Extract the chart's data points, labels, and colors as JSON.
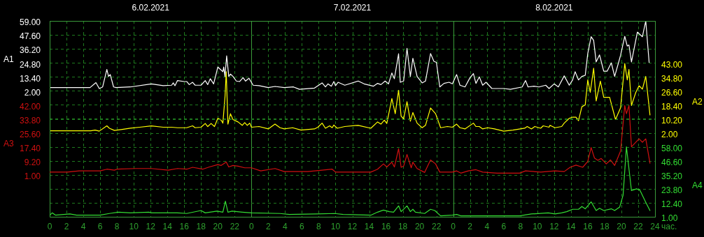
{
  "chart_data": [
    {
      "type": "line",
      "xlabel": "час.",
      "ylabel": "A1",
      "y2label": "A2",
      "xlim": [
        "2021-02-06T00:00",
        "2021-02-09T00:00"
      ],
      "xticks": [
        {
          "value": "2021-02-06T00:00",
          "label": "0"
        },
        {
          "value": "2021-02-06T02:00",
          "label": "2"
        },
        {
          "value": "2021-02-06T04:00",
          "label": "4"
        },
        {
          "value": "2021-02-06T06:00",
          "label": "6"
        },
        {
          "value": "2021-02-06T08:00",
          "label": "8"
        },
        {
          "value": "2021-02-06T10:00",
          "label": "10"
        },
        {
          "value": "2021-02-06T12:00",
          "label": "12"
        },
        {
          "value": "2021-02-06T14:00",
          "label": "14"
        },
        {
          "value": "2021-02-06T16:00",
          "label": "16"
        },
        {
          "value": "2021-02-06T18:00",
          "label": "18"
        },
        {
          "value": "2021-02-06T20:00",
          "label": "20"
        },
        {
          "value": "2021-02-06T22:00",
          "label": "22"
        },
        {
          "value": "2021-02-07T00:00",
          "label": "0"
        },
        {
          "value": "2021-02-07T02:00",
          "label": "2"
        },
        {
          "value": "2021-02-07T04:00",
          "label": "4"
        },
        {
          "value": "2021-02-07T06:00",
          "label": "6"
        },
        {
          "value": "2021-02-07T08:00",
          "label": "8"
        },
        {
          "value": "2021-02-07T10:00",
          "label": "10"
        },
        {
          "value": "2021-02-07T12:00",
          "label": "12"
        },
        {
          "value": "2021-02-07T14:00",
          "label": "14"
        },
        {
          "value": "2021-02-07T16:00",
          "label": "16"
        },
        {
          "value": "2021-02-07T18:00",
          "label": "18"
        },
        {
          "value": "2021-02-07T20:00",
          "label": "20"
        },
        {
          "value": "2021-02-07T22:00",
          "label": "22"
        },
        {
          "value": "2021-02-08T00:00",
          "label": "0"
        },
        {
          "value": "2021-02-08T02:00",
          "label": "2"
        },
        {
          "value": "2021-02-08T04:00",
          "label": "4"
        },
        {
          "value": "2021-02-08T06:00",
          "label": "6"
        },
        {
          "value": "2021-02-08T08:00",
          "label": "8"
        },
        {
          "value": "2021-02-08T10:00",
          "label": "10"
        },
        {
          "value": "2021-02-08T12:00",
          "label": "12"
        },
        {
          "value": "2021-02-08T14:00",
          "label": "14"
        },
        {
          "value": "2021-02-08T16:00",
          "label": "16"
        },
        {
          "value": "2021-02-08T18:00",
          "label": "18"
        },
        {
          "value": "2021-02-08T20:00",
          "label": "20"
        },
        {
          "value": "2021-02-08T22:00",
          "label": "22"
        },
        {
          "value": "2021-02-09T00:00",
          "label": "24"
        }
      ],
      "x2lim": [
        "2021-02-06T00:00",
        "2021-02-09T00:00"
      ],
      "x2ticks": [
        {
          "value": "2021-02-06T12:00",
          "label": "6.02.2021"
        },
        {
          "value": "2021-02-07T12:00",
          "label": "7.02.2021"
        },
        {
          "value": "2021-02-08T12:00",
          "label": "8.02.2021"
        }
      ],
      "ylim": [
        -100.6,
        59
      ],
      "yticks": [
        {
          "value": 59,
          "label": "59.00"
        },
        {
          "value": 47.6,
          "label": "47.60"
        },
        {
          "value": 36.2,
          "label": "36.20"
        },
        {
          "value": 24.8,
          "label": "24.80"
        },
        {
          "value": 13.4,
          "label": "13.40"
        },
        {
          "value": 2,
          "label": "2.00"
        }
      ],
      "y2lim": [
        -47.2,
        67.6
      ],
      "y2ticks": [
        {
          "value": 43,
          "label": "43.00"
        },
        {
          "value": 34.8,
          "label": "34.80"
        },
        {
          "value": 26.6,
          "label": "26.60"
        },
        {
          "value": 18.4,
          "label": "18.40"
        },
        {
          "value": 10.2,
          "label": "10.20"
        },
        {
          "value": 2,
          "label": "2.00"
        }
      ],
      "grid": true,
      "legend": false,
      "marker": "none",
      "line_style": "solid",
      "series": [
        {
          "axis": "y",
          "color": "#ffffff",
          "x": [
            "2021-02-06T00:00",
            "2021-02-06T04:48",
            "2021-02-06T05:30",
            "2021-02-06T05:54",
            "2021-02-06T06:18",
            "2021-02-06T06:48",
            "2021-02-06T07:00",
            "2021-02-06T07:12",
            "2021-02-06T07:36",
            "2021-02-06T07:54",
            "2021-02-06T09:36",
            "2021-02-06T12:06",
            "2021-02-06T13:30",
            "2021-02-06T14:30",
            "2021-02-06T14:42",
            "2021-02-06T14:54",
            "2021-02-06T15:12",
            "2021-02-06T16:00",
            "2021-02-06T16:18",
            "2021-02-06T16:36",
            "2021-02-06T17:00",
            "2021-02-06T17:18",
            "2021-02-06T18:00",
            "2021-02-06T18:30",
            "2021-02-06T18:48",
            "2021-02-06T19:06",
            "2021-02-06T19:30",
            "2021-02-06T20:00",
            "2021-02-06T20:18",
            "2021-02-06T20:36",
            "2021-02-06T20:42",
            "2021-02-06T20:51",
            "2021-02-06T21:03",
            "2021-02-06T21:18",
            "2021-02-06T21:30",
            "2021-02-06T21:48",
            "2021-02-06T22:12",
            "2021-02-06T22:36",
            "2021-02-06T23:00",
            "2021-02-06T23:18",
            "2021-02-06T23:42",
            "2021-02-07T00:12",
            "2021-02-07T00:54",
            "2021-02-07T02:00",
            "2021-02-07T02:48",
            "2021-02-07T03:54",
            "2021-02-07T05:00",
            "2021-02-07T05:42",
            "2021-02-07T07:30",
            "2021-02-07T08:24",
            "2021-02-07T08:48",
            "2021-02-07T09:06",
            "2021-02-07T09:30",
            "2021-02-07T09:48",
            "2021-02-07T10:00",
            "2021-02-07T10:18",
            "2021-02-07T11:06",
            "2021-02-07T12:42",
            "2021-02-07T13:24",
            "2021-02-07T14:30",
            "2021-02-07T15:00",
            "2021-02-07T15:24",
            "2021-02-07T15:54",
            "2021-02-07T16:18",
            "2021-02-07T16:42",
            "2021-02-07T17:00",
            "2021-02-07T17:30",
            "2021-02-07T17:42",
            "2021-02-07T18:06",
            "2021-02-07T18:30",
            "2021-02-07T18:54",
            "2021-02-07T19:12",
            "2021-02-07T19:42",
            "2021-02-07T20:18",
            "2021-02-07T20:42",
            "2021-02-07T21:18",
            "2021-02-07T21:42",
            "2021-02-07T22:00",
            "2021-02-07T22:24",
            "2021-02-07T22:54",
            "2021-02-07T23:30",
            "2021-02-07T23:54",
            "2021-02-08T00:24",
            "2021-02-08T00:48",
            "2021-02-08T01:24",
            "2021-02-08T02:00",
            "2021-02-08T02:24",
            "2021-02-08T02:42",
            "2021-02-08T03:06",
            "2021-02-08T03:30",
            "2021-02-08T03:54",
            "2021-02-08T04:36",
            "2021-02-08T06:00",
            "2021-02-08T06:48",
            "2021-02-08T08:12",
            "2021-02-08T08:36",
            "2021-02-08T08:54",
            "2021-02-08T09:36",
            "2021-02-08T10:12",
            "2021-02-08T11:00",
            "2021-02-08T11:24",
            "2021-02-08T12:00",
            "2021-02-08T12:30",
            "2021-02-08T13:12",
            "2021-02-08T13:48",
            "2021-02-08T14:12",
            "2021-02-08T14:30",
            "2021-02-08T14:54",
            "2021-02-08T15:18",
            "2021-02-08T15:42",
            "2021-02-08T16:00",
            "2021-02-08T16:24",
            "2021-02-08T16:42",
            "2021-02-08T17:00",
            "2021-02-08T17:24",
            "2021-02-08T17:54",
            "2021-02-08T18:18",
            "2021-02-08T18:48",
            "2021-02-08T19:12",
            "2021-02-08T19:54",
            "2021-02-08T20:24",
            "2021-02-08T20:42",
            "2021-02-08T20:54",
            "2021-02-08T21:12",
            "2021-02-08T21:54",
            "2021-02-08T22:30",
            "2021-02-08T22:54",
            "2021-02-08T23:18"
          ],
          "values": [
            4.7,
            4.7,
            8.7,
            3.9,
            5.2,
            19.5,
            13.8,
            15.3,
            5.2,
            4.7,
            5.2,
            7.7,
            6.2,
            6.6,
            8.5,
            6.2,
            10.4,
            9.6,
            9.6,
            7.1,
            9.0,
            6.6,
            6.6,
            10.4,
            7.1,
            11.9,
            7.7,
            21.4,
            19.5,
            17.6,
            21.4,
            13.8,
            30.5,
            13.8,
            15.7,
            13.8,
            10.0,
            9.6,
            12.8,
            10.0,
            12.3,
            6.6,
            6.2,
            4.7,
            5.6,
            4.7,
            5.2,
            3.3,
            4.3,
            8.5,
            5.2,
            7.7,
            5.8,
            9.6,
            6.2,
            9.0,
            6.6,
            10.0,
            7.7,
            5.8,
            8.1,
            7.1,
            10.0,
            7.7,
            16.6,
            11.9,
            32.2,
            9.0,
            10.0,
            36.6,
            13.8,
            28.6,
            13.8,
            8.5,
            10.0,
            32.4,
            26.1,
            25.2,
            5.2,
            8.1,
            9.0,
            7.7,
            15.3,
            6.6,
            5.2,
            12.8,
            16.1,
            8.1,
            13.4,
            6.6,
            9.0,
            3.9,
            3.9,
            3.3,
            5.2,
            10.4,
            5.2,
            5.8,
            5.2,
            6.6,
            3.9,
            7.7,
            5.2,
            14.2,
            6.6,
            10.9,
            17.6,
            10.9,
            13.8,
            14.7,
            32.4,
            46.1,
            43.2,
            25.6,
            31.3,
            18.0,
            18.0,
            24.8,
            13.8,
            30.9,
            46.5,
            38.5,
            39.4,
            25.6,
            49.9,
            46.1,
            59.0,
            25.2
          ]
        },
        {
          "axis": "y2",
          "color": "#ffff00",
          "x": [
            "2021-02-06T00:00",
            "2021-02-06T04:54",
            "2021-02-06T05:24",
            "2021-02-06T05:54",
            "2021-02-06T06:48",
            "2021-02-06T07:06",
            "2021-02-06T07:42",
            "2021-02-06T08:30",
            "2021-02-06T09:36",
            "2021-02-06T10:42",
            "2021-02-06T12:06",
            "2021-02-06T13:30",
            "2021-02-06T14:30",
            "2021-02-06T15:12",
            "2021-02-06T16:18",
            "2021-02-06T17:00",
            "2021-02-06T17:18",
            "2021-02-06T18:00",
            "2021-02-06T18:30",
            "2021-02-06T18:48",
            "2021-02-06T19:12",
            "2021-02-06T19:36",
            "2021-02-06T20:00",
            "2021-02-06T20:24",
            "2021-02-06T20:36",
            "2021-02-06T20:51",
            "2021-02-06T21:00",
            "2021-02-06T21:12",
            "2021-02-06T21:30",
            "2021-02-06T21:48",
            "2021-02-06T22:24",
            "2021-02-06T22:54",
            "2021-02-06T23:12",
            "2021-02-06T23:30",
            "2021-02-06T23:48",
            "2021-02-07T00:00",
            "2021-02-07T00:54",
            "2021-02-07T02:00",
            "2021-02-07T02:48",
            "2021-02-07T03:24",
            "2021-02-07T03:54",
            "2021-02-07T04:54",
            "2021-02-07T05:54",
            "2021-02-07T07:30",
            "2021-02-07T07:54",
            "2021-02-07T08:24",
            "2021-02-07T08:48",
            "2021-02-07T09:18",
            "2021-02-07T09:36",
            "2021-02-07T09:48",
            "2021-02-07T10:12",
            "2021-02-07T11:06",
            "2021-02-07T12:42",
            "2021-02-07T14:12",
            "2021-02-07T15:00",
            "2021-02-07T15:24",
            "2021-02-07T15:48",
            "2021-02-07T16:06",
            "2021-02-07T16:42",
            "2021-02-07T17:06",
            "2021-02-07T17:30",
            "2021-02-07T17:48",
            "2021-02-07T18:06",
            "2021-02-07T18:30",
            "2021-02-07T18:54",
            "2021-02-07T19:12",
            "2021-02-07T19:42",
            "2021-02-07T20:18",
            "2021-02-07T20:42",
            "2021-02-07T21:18",
            "2021-02-07T21:54",
            "2021-02-07T22:30",
            "2021-02-07T23:18",
            "2021-02-07T23:54",
            "2021-02-08T00:24",
            "2021-02-08T00:48",
            "2021-02-08T01:24",
            "2021-02-08T02:24",
            "2021-02-08T02:42",
            "2021-02-08T03:06",
            "2021-02-08T03:30",
            "2021-02-08T04:06",
            "2021-02-08T04:54",
            "2021-02-08T06:00",
            "2021-02-08T07:06",
            "2021-02-08T08:30",
            "2021-02-08T08:48",
            "2021-02-08T09:18",
            "2021-02-08T09:42",
            "2021-02-08T10:24",
            "2021-02-08T10:42",
            "2021-02-08T11:24",
            "2021-02-08T11:30",
            "2021-02-08T12:06",
            "2021-02-08T12:54",
            "2021-02-08T13:12",
            "2021-02-08T13:48",
            "2021-02-08T14:12",
            "2021-02-08T14:36",
            "2021-02-08T14:54",
            "2021-02-08T15:18",
            "2021-02-08T15:42",
            "2021-02-08T16:00",
            "2021-02-08T16:18",
            "2021-02-08T16:42",
            "2021-02-08T17:00",
            "2021-02-08T17:30",
            "2021-02-08T17:54",
            "2021-02-08T18:36",
            "2021-02-08T19:18",
            "2021-02-08T19:54",
            "2021-02-08T20:24",
            "2021-02-08T20:42",
            "2021-02-08T20:54",
            "2021-02-08T21:12",
            "2021-02-08T21:42",
            "2021-02-08T22:06",
            "2021-02-08T22:30",
            "2021-02-08T22:54",
            "2021-02-08T23:24"
          ],
          "values": [
            3.2,
            3.2,
            3.6,
            3.0,
            6.1,
            4.7,
            3.4,
            3.9,
            4.7,
            5.3,
            6.1,
            5.3,
            5.3,
            5.0,
            5.0,
            6.1,
            5.0,
            5.3,
            7.5,
            5.7,
            7.5,
            5.7,
            10.5,
            9.4,
            7.7,
            22.8,
            37.8,
            7.1,
            13.2,
            9.8,
            8.4,
            6.4,
            8.0,
            6.4,
            7.7,
            5.3,
            5.7,
            4.3,
            7.1,
            5.0,
            4.3,
            5.0,
            3.6,
            4.3,
            5.3,
            7.7,
            4.7,
            6.1,
            5.0,
            6.6,
            4.7,
            5.7,
            6.4,
            4.7,
            8.4,
            7.1,
            9.4,
            7.5,
            22.1,
            13.2,
            26.9,
            11.8,
            10.2,
            20.3,
            8.8,
            13.9,
            7.7,
            5.0,
            6.4,
            16.6,
            13.2,
            5.0,
            5.7,
            5.3,
            7.1,
            5.0,
            4.3,
            7.7,
            5.7,
            5.7,
            4.3,
            5.0,
            4.3,
            3.0,
            3.6,
            4.7,
            5.7,
            4.3,
            5.7,
            4.7,
            6.1,
            5.3,
            6.4,
            5.0,
            5.7,
            7.7,
            10.5,
            11.2,
            11.2,
            9.1,
            17.3,
            18.4,
            33.0,
            25.8,
            39.9,
            20.7,
            32.3,
            22.8,
            22.8,
            9.8,
            16.6,
            42.6,
            33.0,
            39.2,
            18.0,
            25.5,
            29.6,
            27.6,
            35.1,
            12.5
          ]
        }
      ]
    },
    {
      "type": "line",
      "ylabel": "A3",
      "y2label": "A4",
      "tick_labels": "y",
      "xlim": [
        "2021-02-06T00:00",
        "2021-02-09T00:00"
      ],
      "ylim": [
        -23.6,
        91.2
      ],
      "yticks": [
        {
          "value": 42,
          "label": "42.00"
        },
        {
          "value": 33.8,
          "label": "33.80"
        },
        {
          "value": 25.6,
          "label": "25.60"
        },
        {
          "value": 17.4,
          "label": "17.40"
        },
        {
          "value": 9.2,
          "label": "9.20"
        },
        {
          "value": 1,
          "label": "1.00"
        }
      ],
      "y2lim": [
        1,
        160.6
      ],
      "y2ticks": [
        {
          "value": 58,
          "label": "58.00"
        },
        {
          "value": 46.6,
          "label": "46.60"
        },
        {
          "value": 35.2,
          "label": "35.20"
        },
        {
          "value": 23.8,
          "label": "23.80"
        },
        {
          "value": 12.4,
          "label": "12.40"
        },
        {
          "value": 1,
          "label": "1.00"
        }
      ],
      "grid": "y",
      "legend": false,
      "marker": "none",
      "line_style": "solid",
      "series": [
        {
          "axis": "y",
          "color": "#d01010",
          "x": [
            "2021-02-06T00:00",
            "2021-02-06T02:06",
            "2021-02-06T03:30",
            "2021-02-06T06:00",
            "2021-02-06T06:48",
            "2021-02-06T07:42",
            "2021-02-06T08:00",
            "2021-02-06T10:12",
            "2021-02-06T12:06",
            "2021-02-06T14:06",
            "2021-02-06T15:12",
            "2021-02-06T16:18",
            "2021-02-06T17:00",
            "2021-02-06T18:12",
            "2021-02-06T19:00",
            "2021-02-06T20:00",
            "2021-02-06T20:24",
            "2021-02-06T21:00",
            "2021-02-06T21:18",
            "2021-02-06T21:48",
            "2021-02-06T22:24",
            "2021-02-06T23:12",
            "2021-02-07T00:00",
            "2021-02-07T01:06",
            "2021-02-07T02:48",
            "2021-02-07T03:54",
            "2021-02-07T06:42",
            "2021-02-07T08:24",
            "2021-02-07T09:36",
            "2021-02-07T10:00",
            "2021-02-07T12:00",
            "2021-02-07T14:12",
            "2021-02-07T15:00",
            "2021-02-07T15:42",
            "2021-02-07T16:06",
            "2021-02-07T16:42",
            "2021-02-07T17:00",
            "2021-02-07T17:30",
            "2021-02-07T17:48",
            "2021-02-07T18:06",
            "2021-02-07T18:30",
            "2021-02-07T19:00",
            "2021-02-07T19:12",
            "2021-02-07T19:42",
            "2021-02-07T20:36",
            "2021-02-07T21:18",
            "2021-02-07T21:54",
            "2021-02-07T22:24",
            "2021-02-07T23:54",
            "2021-02-08T00:24",
            "2021-02-08T00:54",
            "2021-02-08T01:48",
            "2021-02-08T02:42",
            "2021-02-08T03:30",
            "2021-02-08T05:12",
            "2021-02-08T07:54",
            "2021-02-08T08:36",
            "2021-02-08T10:24",
            "2021-02-08T12:06",
            "2021-02-08T13:12",
            "2021-02-08T13:54",
            "2021-02-08T14:36",
            "2021-02-08T15:24",
            "2021-02-08T16:00",
            "2021-02-08T16:24",
            "2021-02-08T16:48",
            "2021-02-08T17:12",
            "2021-02-08T17:36",
            "2021-02-08T18:12",
            "2021-02-08T18:42",
            "2021-02-08T19:12",
            "2021-02-08T19:54",
            "2021-02-08T20:24",
            "2021-02-08T20:36",
            "2021-02-08T20:54",
            "2021-02-08T21:12",
            "2021-02-08T22:06",
            "2021-02-08T22:30",
            "2021-02-08T22:54",
            "2021-02-08T23:24"
          ],
          "values": [
            2.6,
            2.6,
            3.3,
            3.3,
            4.3,
            3.7,
            4.3,
            4.7,
            4.7,
            3.7,
            4.7,
            4.3,
            5.4,
            4.3,
            5.6,
            7.0,
            6.5,
            8.5,
            5.6,
            6.5,
            6.1,
            5.1,
            5.1,
            3.3,
            4.7,
            2.9,
            2.9,
            3.7,
            4.3,
            2.6,
            2.6,
            2.6,
            4.3,
            7.4,
            5.6,
            8.4,
            5.6,
            16.3,
            5.4,
            6.1,
            12.9,
            5.1,
            8.4,
            4.7,
            2.4,
            9.7,
            7.4,
            2.6,
            2.6,
            3.3,
            2.0,
            3.3,
            4.0,
            2.6,
            2.0,
            2.0,
            3.3,
            2.6,
            3.3,
            2.9,
            5.4,
            6.7,
            5.4,
            8.8,
            17.0,
            10.8,
            9.5,
            10.6,
            7.4,
            9.7,
            6.5,
            14.9,
            41.6,
            36.8,
            41.6,
            17.4,
            22.1,
            20.1,
            22.1,
            7.8
          ]
        },
        {
          "axis": "y2",
          "color": "#33dd33",
          "x": [
            "2021-02-06T00:00",
            "2021-02-06T00:18",
            "2021-02-06T00:42",
            "2021-02-06T02:24",
            "2021-02-06T03:12",
            "2021-02-06T06:00",
            "2021-02-06T07:06",
            "2021-02-06T08:12",
            "2021-02-06T09:36",
            "2021-02-06T11:48",
            "2021-02-06T12:06",
            "2021-02-06T15:12",
            "2021-02-06T16:18",
            "2021-02-06T18:00",
            "2021-02-06T18:30",
            "2021-02-06T19:54",
            "2021-02-06T20:36",
            "2021-02-06T20:54",
            "2021-02-06T21:12",
            "2021-02-06T21:42",
            "2021-02-06T22:54",
            "2021-02-07T00:00",
            "2021-02-07T03:24",
            "2021-02-07T04:30",
            "2021-02-07T07:48",
            "2021-02-07T09:54",
            "2021-02-07T10:54",
            "2021-02-07T14:12",
            "2021-02-07T15:00",
            "2021-02-07T15:42",
            "2021-02-07T16:24",
            "2021-02-07T16:54",
            "2021-02-07T17:30",
            "2021-02-07T17:48",
            "2021-02-07T18:30",
            "2021-02-07T18:54",
            "2021-02-07T19:12",
            "2021-02-07T19:30",
            "2021-02-07T20:36",
            "2021-02-07T21:18",
            "2021-02-07T21:48",
            "2021-02-07T22:30",
            "2021-02-07T23:54",
            "2021-02-08T00:24",
            "2021-02-08T00:54",
            "2021-02-08T04:54",
            "2021-02-08T07:54",
            "2021-02-08T09:18",
            "2021-02-08T11:18",
            "2021-02-08T12:06",
            "2021-02-08T12:54",
            "2021-02-08T13:30",
            "2021-02-08T14:12",
            "2021-02-08T14:54",
            "2021-02-08T15:18",
            "2021-02-08T15:42",
            "2021-02-08T16:24",
            "2021-02-08T17:00",
            "2021-02-08T17:24",
            "2021-02-08T17:54",
            "2021-02-08T18:48",
            "2021-02-08T19:12",
            "2021-02-08T19:48",
            "2021-02-08T20:12",
            "2021-02-08T20:36",
            "2021-02-08T21:12",
            "2021-02-08T21:48",
            "2021-02-08T22:12",
            "2021-02-08T22:54",
            "2021-02-08T23:24"
          ],
          "values": [
            2.3,
            4.2,
            2.3,
            3.3,
            2.3,
            2.3,
            3.7,
            4.8,
            4.2,
            4.8,
            4.2,
            4.2,
            3.7,
            6.1,
            4.2,
            5.6,
            4.8,
            13.7,
            4.8,
            5.6,
            4.8,
            4.2,
            3.7,
            2.9,
            3.3,
            3.7,
            2.9,
            2.3,
            4.8,
            6.5,
            5.2,
            4.8,
            9.9,
            5.2,
            9.9,
            5.2,
            7.1,
            4.8,
            3.7,
            7.1,
            6.1,
            1.8,
            2.3,
            2.9,
            1.8,
            1.8,
            1.8,
            3.3,
            4.2,
            3.3,
            4.2,
            5.2,
            7.1,
            7.1,
            9.4,
            7.5,
            13.2,
            6.1,
            8.0,
            6.1,
            7.5,
            6.1,
            9.0,
            18.5,
            58.0,
            22.3,
            23.8,
            22.7,
            12.8,
            6.1
          ]
        }
      ]
    }
  ]
}
